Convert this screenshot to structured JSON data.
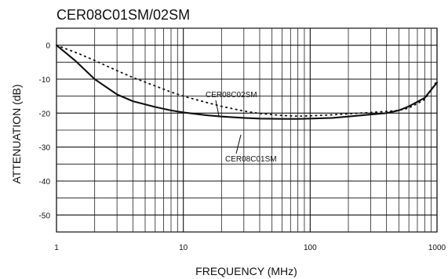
{
  "chart_data": {
    "type": "line",
    "title": "CER08C01SM/02SM",
    "xlabel": "FREQUENCY (MHz)",
    "ylabel": "ATTENUATION (dB)",
    "x_scale": "log",
    "xlim": [
      1,
      1000
    ],
    "ylim": [
      -55,
      5
    ],
    "grid": true,
    "x_ticks": [
      {
        "value": 1,
        "label": "1"
      },
      {
        "value": 10,
        "label": "10"
      },
      {
        "value": 100,
        "label": "100"
      },
      {
        "value": 1000,
        "label": "1000"
      }
    ],
    "y_ticks": [
      {
        "value": 0,
        "label": "0"
      },
      {
        "value": -10,
        "label": "-10"
      },
      {
        "value": -20,
        "label": "-20"
      },
      {
        "value": -30,
        "label": "-30"
      },
      {
        "value": -40,
        "label": "-40"
      },
      {
        "value": -50,
        "label": "-50"
      }
    ],
    "series": [
      {
        "name": "CER08C01SM",
        "line_style": "solid",
        "x": [
          1,
          1.4,
          2,
          3,
          4,
          6,
          8,
          10,
          15,
          20,
          30,
          40,
          60,
          80,
          100,
          150,
          200,
          300,
          400,
          500,
          600,
          800,
          1000
        ],
        "y": [
          0,
          -4.5,
          -10,
          -14.5,
          -16.5,
          -18.2,
          -19.2,
          -19.8,
          -20.6,
          -21.0,
          -21.4,
          -21.6,
          -21.7,
          -21.7,
          -21.6,
          -21.4,
          -21.0,
          -20.4,
          -20.0,
          -19.2,
          -18.0,
          -15.5,
          -11
        ]
      },
      {
        "name": "CER08C02SM",
        "line_style": "dotted",
        "x": [
          1,
          1.5,
          2,
          3,
          4,
          6,
          8,
          10,
          15,
          20,
          30,
          40,
          60,
          80,
          100,
          150,
          200,
          300,
          400,
          500,
          600,
          800,
          1000
        ],
        "y": [
          0,
          -2.5,
          -4.5,
          -7.5,
          -9.5,
          -12.0,
          -13.8,
          -15.0,
          -16.8,
          -18.0,
          -19.4,
          -20.1,
          -20.7,
          -20.9,
          -20.8,
          -20.5,
          -20.2,
          -19.8,
          -19.5,
          -19.2,
          -18.5,
          -16.0,
          -10.5
        ]
      }
    ],
    "annotations": [
      {
        "text": "CER08C02SM",
        "series": "CER08C02SM",
        "x": 26,
        "y": -18.3
      },
      {
        "text": "CER08C01SM",
        "series": "CER08C01SM",
        "x": 22,
        "y": -21.1
      }
    ]
  }
}
